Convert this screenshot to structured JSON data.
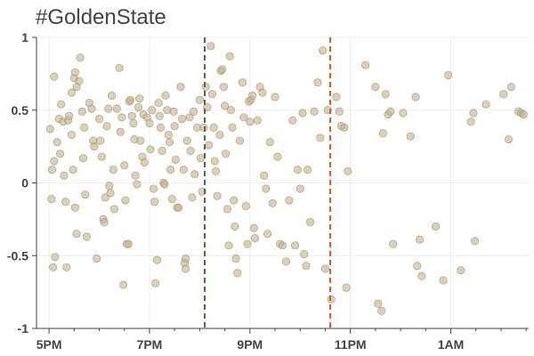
{
  "chart_data": {
    "type": "scatter",
    "title": "#GoldenState",
    "xlabel": "",
    "ylabel": "",
    "x_unit": "time of day (hours, 24h clock; values above 24 are past midnight)",
    "xlim": [
      16.75,
      26.55
    ],
    "ylim": [
      -1,
      1
    ],
    "x_ticks": [
      {
        "value": 17,
        "label": "5PM"
      },
      {
        "value": 19,
        "label": "7PM"
      },
      {
        "value": 21,
        "label": "9PM"
      },
      {
        "value": 23,
        "label": "11PM"
      },
      {
        "value": 25,
        "label": "1AM"
      }
    ],
    "y_ticks": [
      {
        "value": 1,
        "label": "1"
      },
      {
        "value": 0.5,
        "label": "0.5"
      },
      {
        "value": 0,
        "label": "0"
      },
      {
        "value": -0.5,
        "label": "-0.5"
      },
      {
        "value": -1,
        "label": "-1"
      }
    ],
    "grid": true,
    "point_color": "#c2b18f",
    "point_stroke": "#a89a78",
    "reference_lines": [
      {
        "x": 20.1,
        "color": "#4f6b45",
        "style": "dashed"
      },
      {
        "x": 22.6,
        "color": "#c0601c",
        "style": "dashed"
      }
    ],
    "points": [
      [
        17.02,
        0.37
      ],
      [
        17.06,
        0.09
      ],
      [
        17.1,
        0.15
      ],
      [
        17.05,
        -0.11
      ],
      [
        17.08,
        -0.58
      ],
      [
        17.12,
        -0.51
      ],
      [
        17.1,
        0.73
      ],
      [
        17.16,
        0.28
      ],
      [
        17.2,
        0.44
      ],
      [
        17.24,
        0.54
      ],
      [
        17.22,
        0.2
      ],
      [
        17.28,
        0.42
      ],
      [
        17.3,
        0.05
      ],
      [
        17.33,
        -0.13
      ],
      [
        17.35,
        -0.58
      ],
      [
        17.38,
        0.43
      ],
      [
        17.4,
        0.46
      ],
      [
        17.45,
        0.62
      ],
      [
        17.45,
        0.33
      ],
      [
        17.5,
        0.72
      ],
      [
        17.52,
        0.76
      ],
      [
        17.55,
        0.66
      ],
      [
        17.48,
        0.09
      ],
      [
        17.52,
        -0.17
      ],
      [
        17.55,
        -0.35
      ],
      [
        17.6,
        0.7
      ],
      [
        17.62,
        0.86
      ],
      [
        17.66,
        0.49
      ],
      [
        17.7,
        0.38
      ],
      [
        17.68,
        0.17
      ],
      [
        17.72,
        -0.08
      ],
      [
        17.75,
        -0.37
      ],
      [
        17.8,
        0.55
      ],
      [
        17.85,
        0.51
      ],
      [
        17.88,
        0.29
      ],
      [
        17.9,
        0.25
      ],
      [
        17.95,
        -0.52
      ],
      [
        18.0,
        0.44
      ],
      [
        18.02,
        0.29
      ],
      [
        18.05,
        0.18
      ],
      [
        18.08,
        -0.25
      ],
      [
        18.1,
        -0.27
      ],
      [
        18.12,
        -0.1
      ],
      [
        18.15,
        0.39
      ],
      [
        18.18,
        0.51
      ],
      [
        18.2,
        -0.02
      ],
      [
        18.22,
        -0.07
      ],
      [
        18.25,
        0.6
      ],
      [
        18.28,
        0.09
      ],
      [
        18.3,
        -0.18
      ],
      [
        18.35,
        0.51
      ],
      [
        18.4,
        0.79
      ],
      [
        18.42,
        0.35
      ],
      [
        18.45,
        0.45
      ],
      [
        18.48,
        -0.7
      ],
      [
        18.5,
        0.12
      ],
      [
        18.52,
        -0.12
      ],
      [
        18.55,
        -0.42
      ],
      [
        18.58,
        -0.42
      ],
      [
        18.6,
        0.56
      ],
      [
        18.62,
        0.57
      ],
      [
        18.65,
        0.46
      ],
      [
        18.68,
        0.41
      ],
      [
        18.7,
        0.3
      ],
      [
        18.72,
        0.05
      ],
      [
        18.75,
        -0.01
      ],
      [
        18.78,
        0.52
      ],
      [
        18.8,
        0.58
      ],
      [
        18.82,
        0.29
      ],
      [
        18.86,
        0.18
      ],
      [
        18.88,
        0.47
      ],
      [
        18.9,
        0.14
      ],
      [
        18.95,
        0.45
      ],
      [
        19.0,
        0.41
      ],
      [
        19.02,
        0.23
      ],
      [
        19.05,
        0.5
      ],
      [
        19.08,
        -0.04
      ],
      [
        19.1,
        -0.13
      ],
      [
        19.12,
        -0.69
      ],
      [
        19.15,
        -0.53
      ],
      [
        19.18,
        0.55
      ],
      [
        19.2,
        0.46
      ],
      [
        19.22,
        0.38
      ],
      [
        19.25,
        0.22
      ],
      [
        19.28,
        0.0
      ],
      [
        19.3,
        -0.01
      ],
      [
        19.32,
        0.6
      ],
      [
        19.35,
        0.5
      ],
      [
        19.38,
        0.33
      ],
      [
        19.4,
        0.28
      ],
      [
        19.42,
        0.09
      ],
      [
        19.45,
        -0.11
      ],
      [
        19.48,
        0.49
      ],
      [
        19.5,
        0.39
      ],
      [
        19.52,
        0.16
      ],
      [
        19.55,
        -0.17
      ],
      [
        19.58,
        -0.17
      ],
      [
        19.62,
        0.66
      ],
      [
        19.65,
        0.44
      ],
      [
        19.68,
        0.09
      ],
      [
        19.7,
        -0.55
      ],
      [
        19.72,
        -0.59
      ],
      [
        19.72,
        -0.52
      ],
      [
        19.75,
        0.29
      ],
      [
        19.8,
        0.45
      ],
      [
        19.82,
        0.22
      ],
      [
        19.85,
        -0.1
      ],
      [
        19.88,
        0.49
      ],
      [
        19.9,
        0.06
      ],
      [
        19.95,
        0.38
      ],
      [
        20.0,
        0.57
      ],
      [
        20.02,
        0.17
      ],
      [
        20.05,
        -0.06
      ],
      [
        20.08,
        0.38
      ],
      [
        20.12,
        0.66
      ],
      [
        20.15,
        0.52
      ],
      [
        20.18,
        0.26
      ],
      [
        20.22,
        0.94
      ],
      [
        20.25,
        0.61
      ],
      [
        20.28,
        0.38
      ],
      [
        20.3,
        0.15
      ],
      [
        20.32,
        0.08
      ],
      [
        20.35,
        -0.09
      ],
      [
        20.4,
        0.33
      ],
      [
        20.42,
        0.77
      ],
      [
        20.45,
        0.78
      ],
      [
        20.48,
        0.66
      ],
      [
        20.5,
        0.53
      ],
      [
        20.52,
        0.2
      ],
      [
        20.55,
        -0.18
      ],
      [
        20.58,
        -0.43
      ],
      [
        20.6,
        0.87
      ],
      [
        20.62,
        0.5
      ],
      [
        20.65,
        0.38
      ],
      [
        20.68,
        -0.12
      ],
      [
        20.7,
        -0.3
      ],
      [
        20.72,
        -0.52
      ],
      [
        20.75,
        -0.62
      ],
      [
        20.8,
        0.29
      ],
      [
        20.85,
        0.69
      ],
      [
        20.88,
        0.45
      ],
      [
        20.92,
        -0.16
      ],
      [
        20.95,
        -0.42
      ],
      [
        20.98,
        0.56
      ],
      [
        21.0,
        0.42
      ],
      [
        21.02,
        0.57
      ],
      [
        21.05,
        0.6
      ],
      [
        21.08,
        -0.31
      ],
      [
        21.1,
        -0.38
      ],
      [
        21.15,
        0.43
      ],
      [
        21.2,
        0.66
      ],
      [
        21.25,
        0.62
      ],
      [
        21.28,
        0.05
      ],
      [
        21.32,
        -0.04
      ],
      [
        21.35,
        -0.35
      ],
      [
        21.4,
        0.28
      ],
      [
        21.45,
        -0.14
      ],
      [
        21.5,
        0.59
      ],
      [
        21.55,
        0.18
      ],
      [
        21.6,
        -0.42
      ],
      [
        21.65,
        -0.43
      ],
      [
        21.72,
        -0.54
      ],
      [
        21.78,
        -0.12
      ],
      [
        21.85,
        0.43
      ],
      [
        21.9,
        -0.43
      ],
      [
        21.95,
        0.09
      ],
      [
        22.0,
        -0.04
      ],
      [
        22.05,
        0.48
      ],
      [
        22.08,
        -0.49
      ],
      [
        22.12,
        -0.57
      ],
      [
        22.15,
        0.09
      ],
      [
        22.2,
        -0.27
      ],
      [
        22.28,
        0.49
      ],
      [
        22.35,
        0.69
      ],
      [
        22.4,
        0.31
      ],
      [
        22.45,
        0.91
      ],
      [
        22.5,
        -0.59
      ],
      [
        22.55,
        0.5
      ],
      [
        22.62,
        -0.8
      ],
      [
        22.72,
        0.59
      ],
      [
        22.78,
        0.49
      ],
      [
        22.82,
        0.39
      ],
      [
        22.88,
        0.38
      ],
      [
        22.92,
        -0.72
      ],
      [
        22.95,
        0.08
      ],
      [
        23.3,
        0.81
      ],
      [
        23.5,
        0.66
      ],
      [
        23.55,
        -0.83
      ],
      [
        23.62,
        -0.88
      ],
      [
        23.65,
        0.34
      ],
      [
        23.7,
        0.61
      ],
      [
        23.75,
        0.47
      ],
      [
        23.8,
        0.49
      ],
      [
        23.85,
        -0.42
      ],
      [
        24.05,
        0.48
      ],
      [
        24.2,
        0.32
      ],
      [
        24.3,
        0.59
      ],
      [
        24.33,
        -0.57
      ],
      [
        24.38,
        -0.39
      ],
      [
        24.42,
        -0.64
      ],
      [
        24.7,
        -0.3
      ],
      [
        24.85,
        -0.67
      ],
      [
        24.95,
        0.74
      ],
      [
        25.2,
        -0.6
      ],
      [
        25.4,
        0.42
      ],
      [
        25.45,
        0.48
      ],
      [
        25.48,
        -0.4
      ],
      [
        25.7,
        0.54
      ],
      [
        26.05,
        0.61
      ],
      [
        26.15,
        0.3
      ],
      [
        26.2,
        0.66
      ],
      [
        26.35,
        0.49
      ],
      [
        26.4,
        0.48
      ],
      [
        26.45,
        0.47
      ]
    ]
  }
}
